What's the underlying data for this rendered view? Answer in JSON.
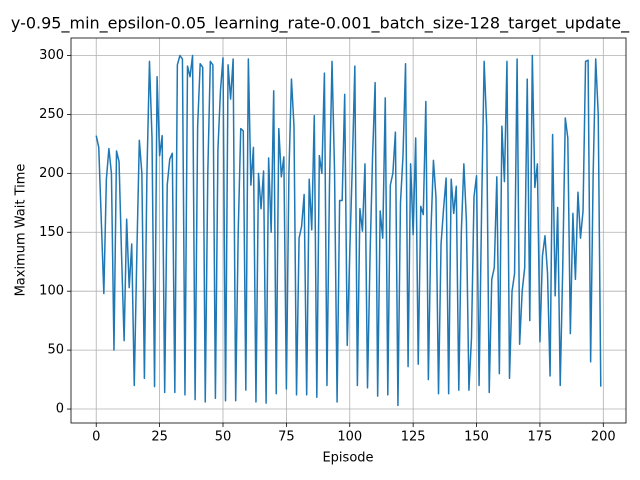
{
  "chart_data": {
    "type": "line",
    "title": "y-0.95_min_epsilon-0.05_learning_rate-0.001_batch_size-128_target_update_",
    "xlabel": "Episode",
    "ylabel": "Maximum Wait Time",
    "color": "#1f77b4",
    "grid": true,
    "xlim": [
      -9.95,
      208.95
    ],
    "ylim": [
      -11.85,
      314.85
    ],
    "xticks": [
      0,
      25,
      50,
      75,
      100,
      125,
      150,
      175,
      200
    ],
    "yticks": [
      0,
      50,
      100,
      150,
      200,
      250,
      300
    ],
    "x": [
      0,
      1,
      2,
      3,
      4,
      5,
      6,
      7,
      8,
      9,
      10,
      11,
      12,
      13,
      14,
      15,
      16,
      17,
      18,
      19,
      20,
      21,
      22,
      23,
      24,
      25,
      26,
      27,
      28,
      29,
      30,
      31,
      32,
      33,
      34,
      35,
      36,
      37,
      38,
      39,
      40,
      41,
      42,
      43,
      44,
      45,
      46,
      47,
      48,
      49,
      50,
      51,
      52,
      53,
      54,
      55,
      56,
      57,
      58,
      59,
      60,
      61,
      62,
      63,
      64,
      65,
      66,
      67,
      68,
      69,
      70,
      71,
      72,
      73,
      74,
      75,
      76,
      77,
      78,
      79,
      80,
      81,
      82,
      83,
      84,
      85,
      86,
      87,
      88,
      89,
      90,
      91,
      92,
      93,
      94,
      95,
      96,
      97,
      98,
      99,
      100,
      101,
      102,
      103,
      104,
      105,
      106,
      107,
      108,
      109,
      110,
      111,
      112,
      113,
      114,
      115,
      116,
      117,
      118,
      119,
      120,
      121,
      122,
      123,
      124,
      125,
      126,
      127,
      128,
      129,
      130,
      131,
      132,
      133,
      134,
      135,
      136,
      137,
      138,
      139,
      140,
      141,
      142,
      143,
      144,
      145,
      146,
      147,
      148,
      149,
      150,
      151,
      152,
      153,
      154,
      155,
      156,
      157,
      158,
      159,
      160,
      161,
      162,
      163,
      164,
      165,
      166,
      167,
      168,
      169,
      170,
      171,
      172,
      173,
      174,
      175,
      176,
      177,
      178,
      179,
      180,
      181,
      182,
      183,
      184,
      185,
      186,
      187,
      188,
      189,
      190,
      191,
      192,
      193,
      194,
      195,
      196,
      197,
      198,
      199
    ],
    "values": [
      232,
      222,
      160,
      98,
      195,
      221,
      200,
      50,
      219,
      210,
      130,
      58,
      161,
      103,
      140,
      20,
      130,
      228,
      200,
      26,
      200,
      295,
      230,
      19,
      282,
      215,
      232,
      14,
      190,
      212,
      217,
      14,
      292,
      300,
      297,
      12,
      291,
      282,
      300,
      8,
      240,
      293,
      290,
      6,
      200,
      295,
      292,
      9,
      220,
      270,
      298,
      7,
      292,
      263,
      297,
      7,
      150,
      238,
      236,
      16,
      297,
      190,
      222,
      6,
      200,
      170,
      202,
      5,
      213,
      150,
      270,
      13,
      238,
      197,
      214,
      17,
      200,
      280,
      240,
      12,
      145,
      155,
      182,
      12,
      195,
      152,
      249,
      10,
      215,
      200,
      285,
      20,
      190,
      295,
      201,
      6,
      177,
      177,
      267,
      54,
      133,
      206,
      291,
      20,
      170,
      151,
      208,
      18,
      130,
      215,
      277,
      11,
      168,
      145,
      264,
      12,
      190,
      200,
      235,
      3,
      175,
      215,
      293,
      36,
      208,
      148,
      230,
      38,
      172,
      165,
      261,
      25,
      150,
      211,
      180,
      13,
      140,
      170,
      196,
      13,
      195,
      166,
      189,
      16,
      150,
      208,
      160,
      16,
      60,
      180,
      198,
      20,
      170,
      295,
      240,
      14,
      110,
      120,
      197,
      30,
      240,
      193,
      295,
      26,
      100,
      115,
      297,
      55,
      100,
      120,
      280,
      75,
      300,
      188,
      208,
      57,
      130,
      147,
      115,
      28,
      233,
      96,
      171,
      20,
      120,
      247,
      230,
      64,
      166,
      110,
      184,
      145,
      168,
      295,
      296,
      40,
      200,
      297,
      250,
      19
    ]
  }
}
